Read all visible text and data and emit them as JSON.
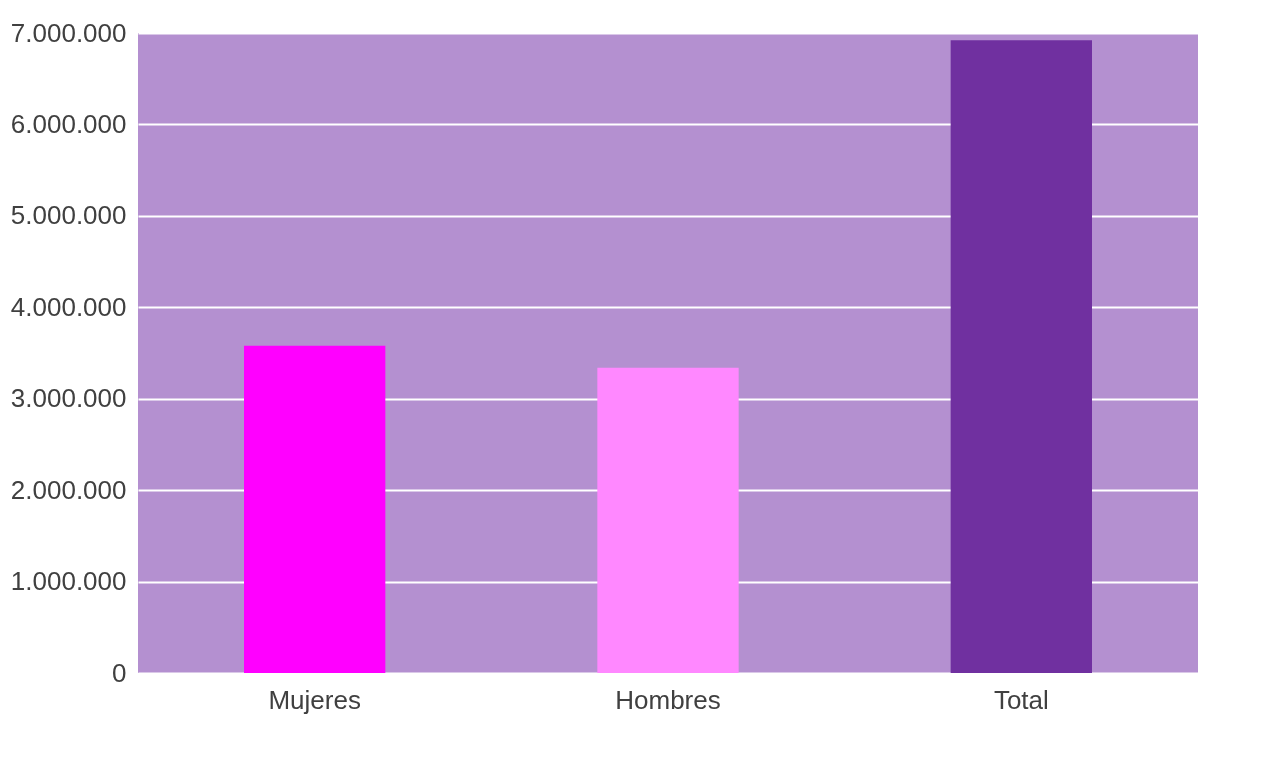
{
  "chart_data": {
    "type": "bar",
    "categories": [
      "Mujeres",
      "Hombres",
      "Total"
    ],
    "values": [
      3580000,
      3340000,
      6920000
    ],
    "colors": [
      "#ff00ff",
      "#ff88ff",
      "#7030a0"
    ],
    "ylim": [
      0,
      7000000
    ],
    "yticks": [
      {
        "value": 0,
        "label": "0"
      },
      {
        "value": 1000000,
        "label": "1.000.000"
      },
      {
        "value": 2000000,
        "label": "2.000.000"
      },
      {
        "value": 3000000,
        "label": "3.000.000"
      },
      {
        "value": 4000000,
        "label": "4.000.000"
      },
      {
        "value": 5000000,
        "label": "5.000.000"
      },
      {
        "value": 6000000,
        "label": "6.000.000"
      },
      {
        "value": 7000000,
        "label": "7.000.000"
      }
    ],
    "grid": "y",
    "legend": false
  }
}
